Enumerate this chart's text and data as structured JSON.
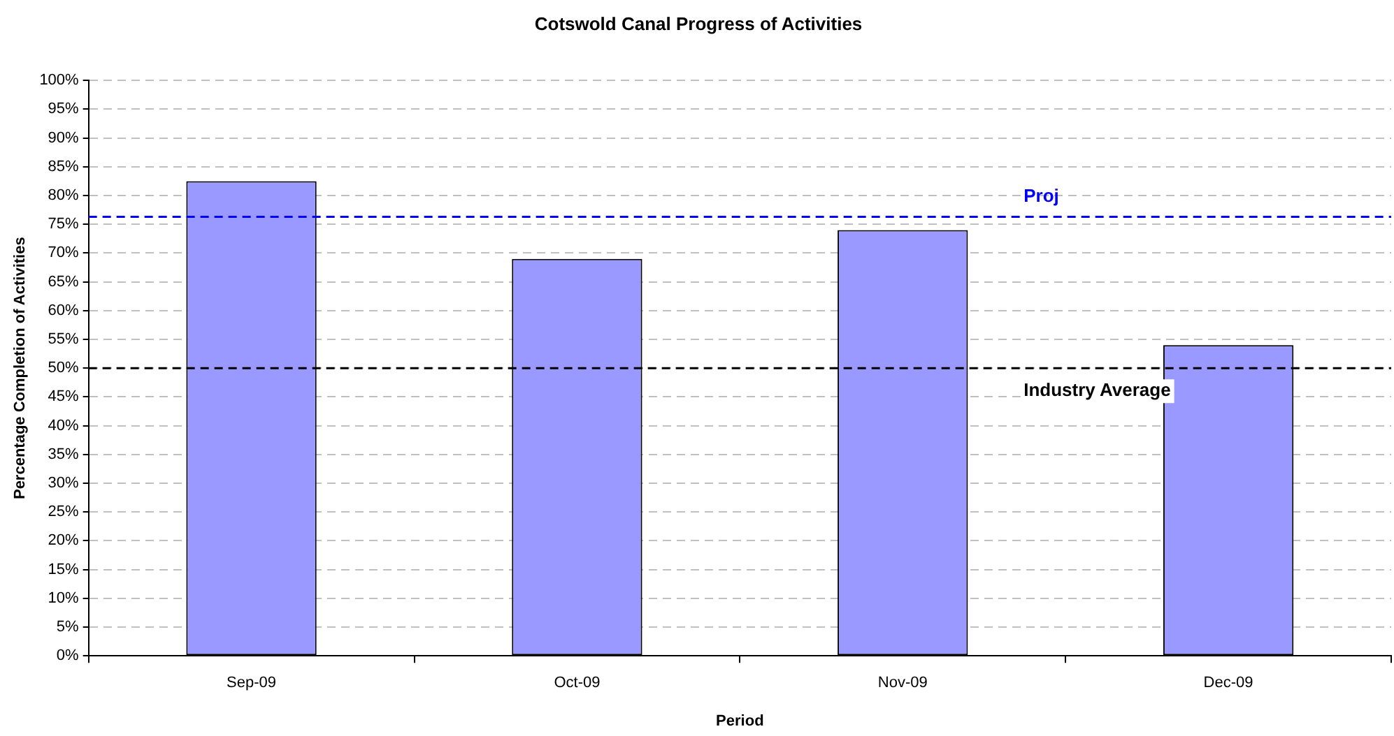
{
  "chart_data": {
    "type": "bar",
    "title": "Cotswold Canal Progress of Activities",
    "xlabel": "Period",
    "ylabel": "Percentage Completion of Activities",
    "categories": [
      "Sep-09",
      "Oct-09",
      "Nov-09",
      "Dec-09"
    ],
    "values": [
      82.5,
      69,
      74,
      54
    ],
    "color": "#9999ff",
    "ylim": [
      0,
      100
    ],
    "yticks": [
      {
        "value": 0,
        "label": "0%"
      },
      {
        "value": 5,
        "label": "5%"
      },
      {
        "value": 10,
        "label": "10%"
      },
      {
        "value": 15,
        "label": "15%"
      },
      {
        "value": 20,
        "label": "20%"
      },
      {
        "value": 25,
        "label": "25%"
      },
      {
        "value": 30,
        "label": "30%"
      },
      {
        "value": 35,
        "label": "35%"
      },
      {
        "value": 40,
        "label": "40%"
      },
      {
        "value": 45,
        "label": "45%"
      },
      {
        "value": 50,
        "label": "50%"
      },
      {
        "value": 55,
        "label": "55%"
      },
      {
        "value": 60,
        "label": "60%"
      },
      {
        "value": 65,
        "label": "65%"
      },
      {
        "value": 70,
        "label": "70%"
      },
      {
        "value": 75,
        "label": "75%"
      },
      {
        "value": 80,
        "label": "80%"
      },
      {
        "value": 85,
        "label": "85%"
      },
      {
        "value": 90,
        "label": "90%"
      },
      {
        "value": 95,
        "label": "95%"
      },
      {
        "value": 100,
        "label": "100%"
      }
    ],
    "grid": "y",
    "ref_lines": [
      {
        "axis": "y",
        "value": 76.3,
        "label": "Proj",
        "color": "#0000ff",
        "line_style": "dashed"
      },
      {
        "axis": "y",
        "value": 50,
        "label": "Industry Average",
        "color": "#000000",
        "line_style": "dashed"
      }
    ],
    "legend": false
  }
}
